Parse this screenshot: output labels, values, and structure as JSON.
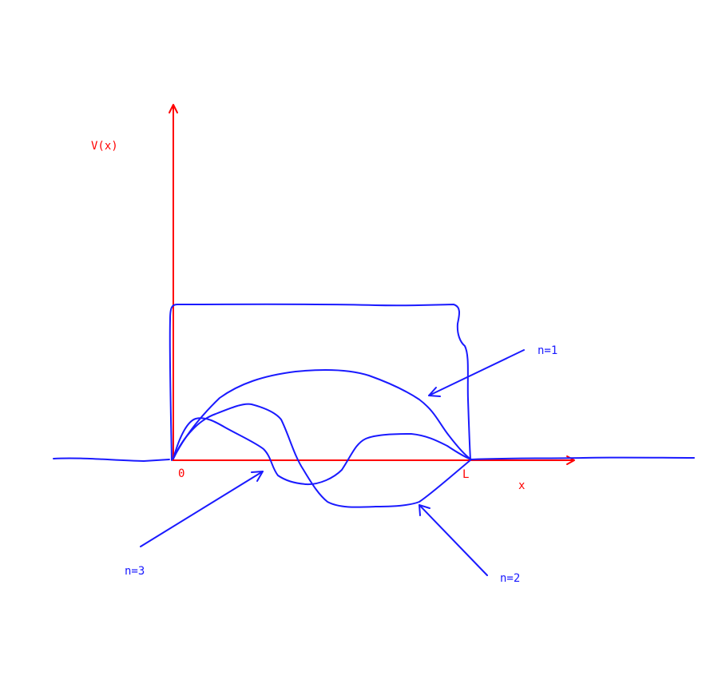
{
  "colors": {
    "axis": "#ff0000",
    "sketch": "#1a1aff",
    "background": "#ffffff"
  },
  "axes": {
    "y_label": "V(x)",
    "x_label": "x",
    "origin_label": "0",
    "right_wall_label": "L"
  },
  "annotations": {
    "n1": "n=1",
    "n2": "n=2",
    "n3": "n=3"
  }
}
